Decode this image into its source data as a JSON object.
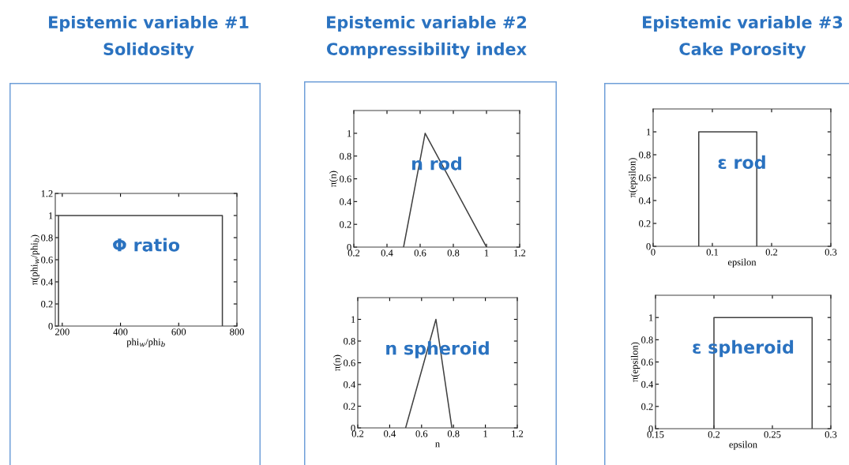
{
  "chart_data": [
    {
      "type": "line",
      "title": "Epistemic variable #1",
      "subtitle": "Solidosity",
      "xlabel": "phi$_{w}$/phi$_{b}$",
      "ylabel": "π(phi$_{w}$/phi$_{b}$)",
      "annotations": [
        "Φ ratio"
      ],
      "x": [
        187,
        187,
        750,
        750
      ],
      "series": [
        {
          "color": "#404040",
          "values": [
            0,
            1,
            1,
            0
          ]
        }
      ],
      "xlim": [
        176,
        800
      ],
      "xticks": [
        200,
        400,
        600,
        800
      ],
      "ylim": [
        0,
        1.2
      ],
      "yticks": [
        0,
        0.2,
        0.4,
        0.6,
        0.8,
        1,
        1.2
      ],
      "grid": false,
      "legend": false
    },
    {
      "type": "line",
      "title": "Epistemic variable #2",
      "subtitle": "Compressibility index",
      "ylabel": "π(n)",
      "annotations": [
        "n rod"
      ],
      "x": [
        0.5,
        0.63,
        1.0
      ],
      "series": [
        {
          "color": "#404040",
          "values": [
            0,
            1,
            0
          ]
        }
      ],
      "xlim": [
        0.2,
        1.2
      ],
      "xticks": [
        0.2,
        0.4,
        0.6,
        0.8,
        1,
        1.2
      ],
      "ylim": [
        0,
        1.2
      ],
      "yticks": [
        0,
        0.2,
        0.4,
        0.6,
        0.8,
        1
      ],
      "grid": false,
      "legend": false
    },
    {
      "type": "line",
      "xlabel": "n",
      "ylabel": "π(n)",
      "annotations": [
        "n spheroid"
      ],
      "x": [
        0.5,
        0.69,
        0.79
      ],
      "series": [
        {
          "color": "#404040",
          "values": [
            0,
            1,
            0
          ]
        }
      ],
      "xlim": [
        0.2,
        1.2
      ],
      "xticks": [
        0.2,
        0.4,
        0.6,
        0.8,
        1,
        1.2
      ],
      "ylim": [
        0,
        1.2
      ],
      "yticks": [
        0,
        0.2,
        0.4,
        0.6,
        0.8,
        1
      ],
      "grid": false,
      "legend": false
    },
    {
      "type": "line",
      "title": "Epistemic variable #3",
      "subtitle": "Cake Porosity",
      "xlabel": "epsilon",
      "ylabel": "π(epsilon)",
      "annotations": [
        "ε rod"
      ],
      "x": [
        0.077,
        0.077,
        0.175,
        0.175
      ],
      "series": [
        {
          "color": "#404040",
          "values": [
            0,
            1,
            1,
            0
          ]
        }
      ],
      "xlim": [
        0,
        0.3
      ],
      "xticks": [
        0,
        0.1,
        0.2,
        0.3
      ],
      "ylim": [
        0,
        1.2
      ],
      "yticks": [
        0,
        0.2,
        0.4,
        0.6,
        0.8,
        1
      ],
      "grid": false,
      "legend": false
    },
    {
      "type": "line",
      "xlabel": "epsilon",
      "ylabel": "π(epsilon)",
      "annotations": [
        "ε spheroid"
      ],
      "x": [
        0.2,
        0.2,
        0.284,
        0.284
      ],
      "series": [
        {
          "color": "#404040",
          "values": [
            0,
            1,
            1,
            0
          ]
        }
      ],
      "xlim": [
        0.15,
        0.3
      ],
      "xticks": [
        0.15,
        0.2,
        0.25,
        0.3
      ],
      "ylim": [
        0,
        1.2
      ],
      "yticks": [
        0,
        0.2,
        0.4,
        0.6,
        0.8,
        1
      ],
      "grid": false,
      "legend": false
    }
  ]
}
